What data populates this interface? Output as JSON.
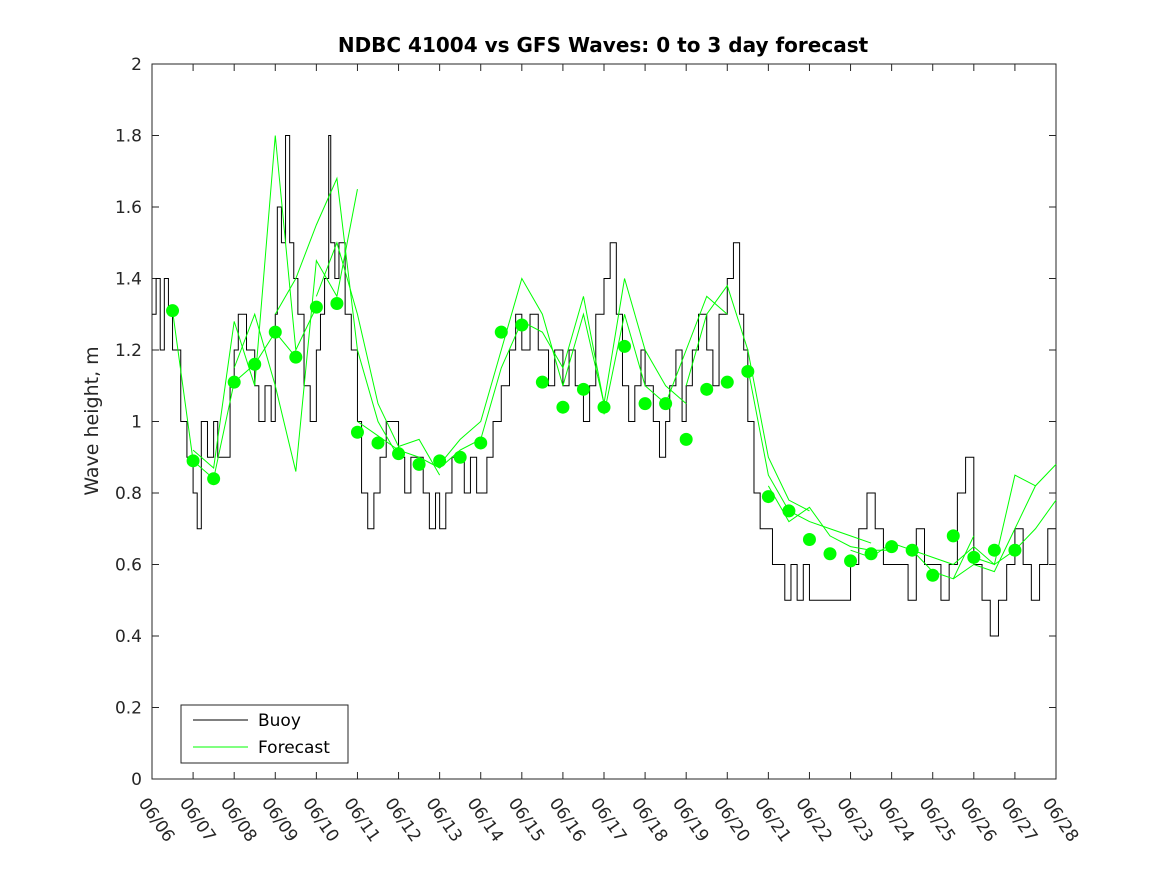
{
  "chart_data": {
    "type": "line",
    "title": "NDBC 41004 vs GFS Waves: 0 to 3 day forecast",
    "xlabel": "",
    "ylabel": "Wave height, m",
    "xlim": [
      "06/06",
      "06/28"
    ],
    "ylim": [
      0,
      2
    ],
    "y_ticks": [
      0,
      0.2,
      0.4,
      0.6,
      0.8,
      1,
      1.2,
      1.4,
      1.6,
      1.8,
      2
    ],
    "y_tick_labels": [
      "0",
      "0.2",
      "0.4",
      "0.6",
      "0.8",
      "1",
      "1.2",
      "1.4",
      "1.6",
      "1.8",
      "2"
    ],
    "x_tick_labels": [
      "06/06",
      "06/07",
      "06/08",
      "06/09",
      "06/10",
      "06/11",
      "06/12",
      "06/13",
      "06/14",
      "06/15",
      "06/16",
      "06/17",
      "06/18",
      "06/19",
      "06/20",
      "06/21",
      "06/22",
      "06/23",
      "06/24",
      "06/25",
      "06/26",
      "06/27",
      "06/28"
    ],
    "legend": {
      "location": "bottom-left",
      "entries": [
        "Buoy",
        "Forecast"
      ]
    },
    "colors": {
      "buoy": "#000000",
      "forecast": "#00ff00"
    },
    "series": [
      {
        "name": "Buoy",
        "style": "step",
        "x_days": [
          0,
          0.1,
          0.2,
          0.3,
          0.4,
          0.5,
          0.7,
          0.85,
          1.0,
          1.1,
          1.2,
          1.35,
          1.5,
          1.6,
          1.75,
          1.9,
          2.0,
          2.1,
          2.3,
          2.5,
          2.6,
          2.75,
          2.9,
          3.0,
          3.05,
          3.15,
          3.25,
          3.35,
          3.45,
          3.55,
          3.7,
          3.85,
          4.0,
          4.1,
          4.2,
          4.3,
          4.35,
          4.45,
          4.55,
          4.7,
          4.85,
          5.0,
          5.1,
          5.25,
          5.4,
          5.55,
          5.7,
          5.85,
          6.0,
          6.15,
          6.3,
          6.45,
          6.6,
          6.75,
          6.9,
          7.0,
          7.15,
          7.3,
          7.45,
          7.6,
          7.75,
          7.9,
          8.0,
          8.15,
          8.3,
          8.5,
          8.7,
          8.85,
          9.0,
          9.2,
          9.4,
          9.5,
          9.65,
          9.8,
          10.0,
          10.15,
          10.3,
          10.5,
          10.65,
          10.8,
          11.0,
          11.15,
          11.3,
          11.45,
          11.6,
          11.75,
          11.9,
          12.0,
          12.2,
          12.35,
          12.5,
          12.6,
          12.75,
          12.9,
          13.0,
          13.15,
          13.3,
          13.5,
          13.65,
          13.8,
          14.0,
          14.15,
          14.3,
          14.4,
          14.5,
          14.65,
          14.8,
          15.0,
          15.1,
          15.25,
          15.4,
          15.55,
          15.7,
          15.85,
          16.0,
          16.2,
          16.4,
          16.6,
          16.8,
          17.0,
          17.2,
          17.4,
          17.6,
          17.8,
          18.0,
          18.2,
          18.4,
          18.6,
          18.8,
          19.0,
          19.2,
          19.4,
          19.6,
          19.8,
          20.0,
          20.2,
          20.4,
          20.6,
          20.8,
          21.0,
          21.2,
          21.4,
          21.6,
          21.8,
          22.0
        ],
        "values": [
          1.3,
          1.4,
          1.2,
          1.4,
          1.3,
          1.2,
          1.0,
          0.9,
          0.8,
          0.7,
          1.0,
          0.9,
          1.0,
          0.9,
          0.9,
          1.1,
          1.2,
          1.3,
          1.2,
          1.1,
          1.0,
          1.1,
          1.0,
          1.3,
          1.6,
          1.5,
          1.8,
          1.5,
          1.4,
          1.3,
          1.1,
          1.0,
          1.2,
          1.3,
          1.4,
          1.8,
          1.5,
          1.4,
          1.5,
          1.3,
          1.2,
          1.0,
          0.8,
          0.7,
          0.8,
          0.9,
          1.0,
          1.0,
          0.9,
          0.8,
          0.9,
          0.9,
          0.8,
          0.7,
          0.8,
          0.7,
          0.8,
          0.9,
          0.9,
          0.8,
          0.9,
          0.8,
          0.8,
          0.9,
          1.0,
          1.1,
          1.2,
          1.3,
          1.2,
          1.3,
          1.2,
          1.2,
          1.1,
          1.2,
          1.1,
          1.2,
          1.1,
          1.0,
          1.1,
          1.3,
          1.4,
          1.5,
          1.3,
          1.1,
          1.0,
          1.1,
          1.2,
          1.1,
          1.0,
          0.9,
          1.0,
          1.1,
          1.2,
          1.0,
          1.1,
          1.2,
          1.3,
          1.2,
          1.1,
          1.3,
          1.4,
          1.5,
          1.3,
          1.2,
          1.0,
          0.8,
          0.7,
          0.7,
          0.6,
          0.6,
          0.5,
          0.6,
          0.5,
          0.6,
          0.5,
          0.5,
          0.5,
          0.5,
          0.5,
          0.6,
          0.7,
          0.8,
          0.7,
          0.6,
          0.6,
          0.6,
          0.5,
          0.7,
          0.6,
          0.6,
          0.5,
          0.6,
          0.8,
          0.9,
          0.6,
          0.5,
          0.4,
          0.5,
          0.6,
          0.7,
          0.6,
          0.5,
          0.6,
          0.7,
          0.7
        ]
      },
      {
        "name": "Forecast",
        "style": "line-group",
        "runs": [
          {
            "x_days": [
              0.5,
              1.0,
              1.5,
              2.0,
              2.5,
              3.0,
              3.5
            ],
            "values": [
              1.31,
              0.89,
              0.84,
              1.11,
              1.16,
              1.25,
              1.18
            ]
          },
          {
            "x_days": [
              1.0,
              1.5,
              2.0,
              2.5,
              3.0,
              3.5,
              4.0
            ],
            "values": [
              0.92,
              0.87,
              1.28,
              1.1,
              1.8,
              1.2,
              1.32
            ]
          },
          {
            "x_days": [
              2.0,
              2.5,
              3.0,
              3.5,
              4.0,
              4.5,
              5.0
            ],
            "values": [
              1.15,
              1.3,
              1.1,
              0.86,
              1.45,
              1.35,
              1.65
            ]
          },
          {
            "x_days": [
              3.0,
              3.5,
              4.0,
              4.5,
              5.0,
              5.5,
              6.0
            ],
            "values": [
              1.3,
              1.4,
              1.55,
              1.68,
              1.2,
              1.0,
              0.9
            ]
          },
          {
            "x_days": [
              4.0,
              4.5,
              5.0,
              5.5,
              6.0,
              6.5,
              7.0
            ],
            "values": [
              1.35,
              1.5,
              1.3,
              1.05,
              0.93,
              0.95,
              0.85
            ]
          },
          {
            "x_days": [
              5.0,
              5.5,
              6.0,
              6.5,
              7.0,
              7.5,
              8.0
            ],
            "values": [
              1.0,
              0.96,
              0.92,
              0.9,
              0.87,
              0.92,
              0.95
            ]
          },
          {
            "x_days": [
              7.0,
              7.5,
              8.0,
              8.5,
              9.0,
              9.5,
              10.0
            ],
            "values": [
              0.88,
              0.95,
              1.0,
              1.2,
              1.4,
              1.3,
              1.1
            ]
          },
          {
            "x_days": [
              8.0,
              8.5,
              9.0,
              9.5,
              10.0,
              10.5,
              11.0
            ],
            "values": [
              0.95,
              1.15,
              1.28,
              1.25,
              1.15,
              1.35,
              1.05
            ]
          },
          {
            "x_days": [
              10.0,
              10.5,
              11.0,
              11.5,
              12.0,
              12.5,
              13.0
            ],
            "values": [
              1.1,
              1.3,
              1.05,
              1.4,
              1.2,
              1.1,
              1.05
            ]
          },
          {
            "x_days": [
              11.0,
              11.5,
              12.0,
              12.5,
              13.0,
              13.5,
              14.0
            ],
            "values": [
              1.02,
              1.3,
              1.1,
              1.05,
              1.2,
              1.35,
              1.3
            ]
          },
          {
            "x_days": [
              13.0,
              13.5,
              14.0,
              14.5,
              15.0,
              15.5,
              16.0
            ],
            "values": [
              1.1,
              1.3,
              1.38,
              1.2,
              0.9,
              0.78,
              0.75
            ]
          },
          {
            "x_days": [
              14.5,
              15.0,
              15.5,
              16.0,
              16.5,
              17.0,
              17.5
            ],
            "values": [
              1.15,
              0.85,
              0.75,
              0.72,
              0.7,
              0.68,
              0.66
            ]
          },
          {
            "x_days": [
              15.0,
              15.5,
              16.0,
              16.5,
              17.0,
              17.5,
              18.0
            ],
            "values": [
              0.82,
              0.72,
              0.76,
              0.68,
              0.65,
              0.64,
              0.64
            ]
          },
          {
            "x_days": [
              17.0,
              17.5,
              18.0,
              18.5,
              19.0,
              19.5,
              20.0
            ],
            "values": [
              0.64,
              0.62,
              0.66,
              0.64,
              0.58,
              0.56,
              0.68
            ]
          },
          {
            "x_days": [
              18.5,
              19.0,
              19.5,
              20.0,
              20.5,
              21.0,
              21.5
            ],
            "values": [
              0.64,
              0.62,
              0.6,
              0.65,
              0.6,
              0.85,
              0.82
            ]
          },
          {
            "x_days": [
              19.5,
              20.0,
              20.5,
              21.0,
              21.5,
              22.0
            ],
            "values": [
              0.56,
              0.6,
              0.58,
              0.7,
              0.82,
              0.88
            ]
          },
          {
            "x_days": [
              20.0,
              20.5,
              21.0,
              21.5,
              22.0
            ],
            "values": [
              0.62,
              0.6,
              0.64,
              0.7,
              0.78
            ]
          }
        ],
        "markers": {
          "x_days": [
            0.5,
            1.0,
            1.5,
            2.0,
            2.5,
            3.0,
            3.5,
            4.0,
            4.5,
            5.0,
            5.5,
            6.0,
            6.5,
            7.0,
            7.5,
            8.0,
            8.5,
            9.0,
            9.5,
            10.0,
            10.5,
            11.0,
            11.5,
            12.0,
            12.5,
            13.0,
            13.5,
            14.0,
            14.5,
            15.0,
            15.5,
            16.0,
            16.5,
            17.0,
            17.5,
            18.0,
            18.5,
            19.0,
            19.5,
            20.0,
            20.5,
            21.0
          ],
          "values": [
            1.31,
            0.89,
            0.84,
            1.11,
            1.16,
            1.25,
            1.18,
            1.32,
            1.33,
            0.97,
            0.94,
            0.91,
            0.88,
            0.89,
            0.9,
            0.94,
            1.25,
            1.27,
            1.11,
            1.04,
            1.09,
            1.04,
            1.21,
            1.05,
            1.05,
            0.95,
            1.09,
            1.11,
            1.14,
            0.79,
            0.75,
            0.67,
            0.63,
            0.61,
            0.63,
            0.65,
            0.64,
            0.57,
            0.68,
            0.62,
            0.64,
            0.64
          ]
        }
      }
    ]
  }
}
